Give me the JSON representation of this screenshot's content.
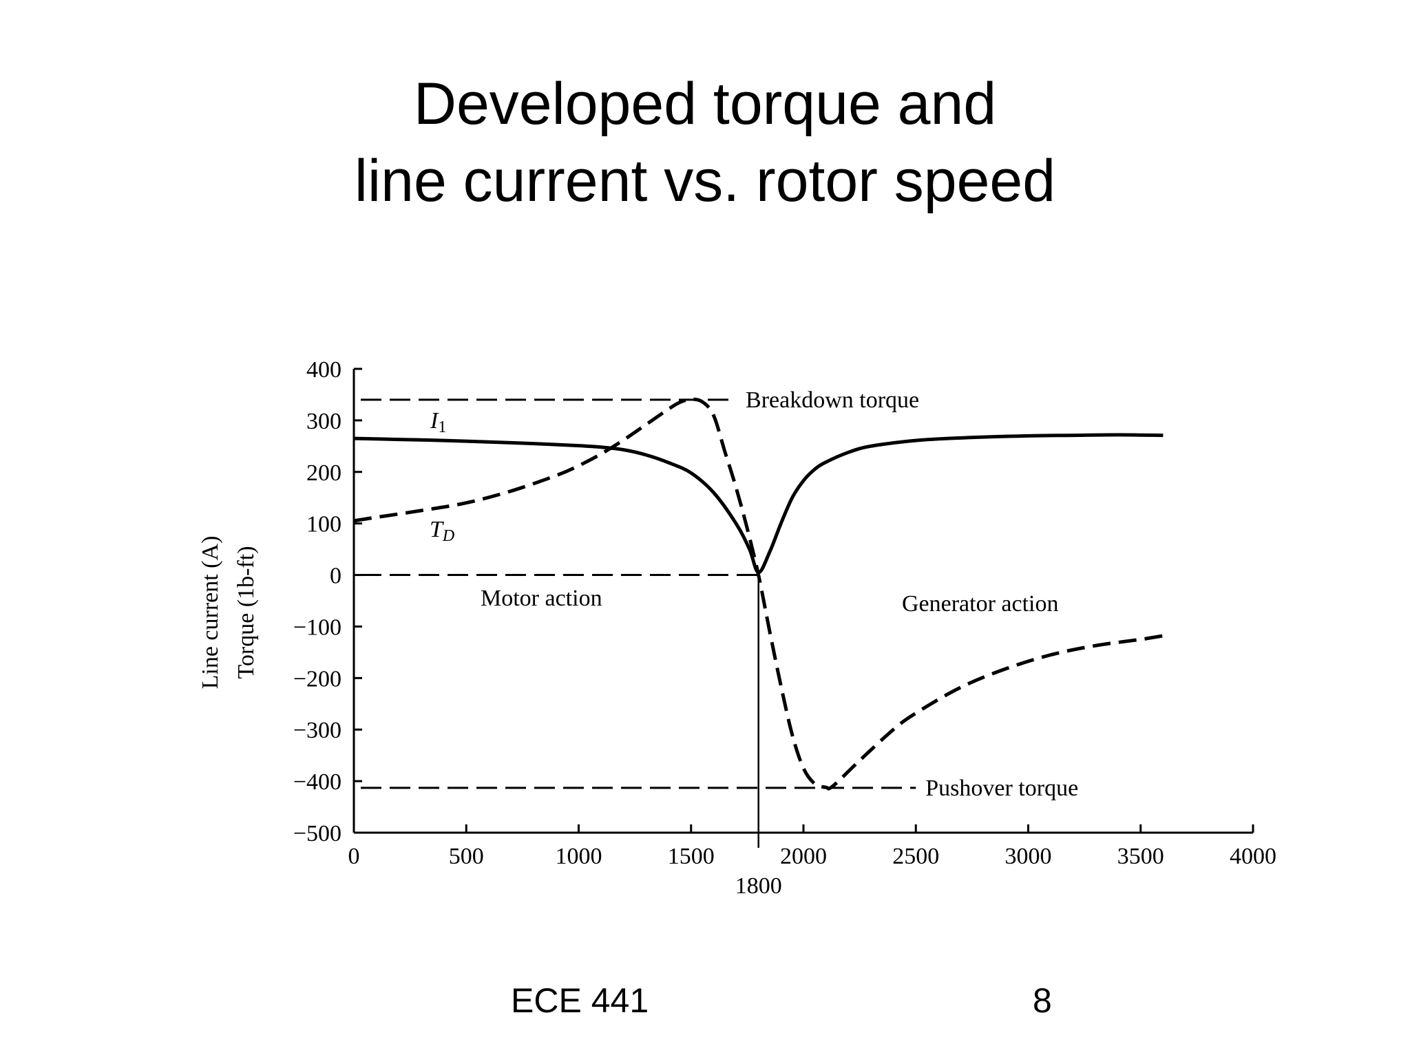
{
  "slide": {
    "title_line1": "Developed torque and",
    "title_line2": "line current vs. rotor speed",
    "footer_course": "ECE 441",
    "footer_page": "8"
  },
  "chart_data": {
    "type": "line",
    "ylabel_line1": "Line current (A)",
    "ylabel_line2": "Torque (1b-ft)",
    "xlim": [
      0,
      4000
    ],
    "ylim": [
      -500,
      400
    ],
    "x_ticks": [
      0,
      500,
      1000,
      1500,
      2000,
      2500,
      3000,
      3500,
      4000
    ],
    "y_ticks": [
      400,
      300,
      200,
      100,
      0,
      -100,
      -200,
      -300,
      -400,
      -500
    ],
    "x_tick_labels": [
      "0",
      "500",
      "1000",
      "1500",
      "2000",
      "2500",
      "3000",
      "3500",
      "4000"
    ],
    "y_tick_labels": [
      "400",
      "300",
      "200",
      "100",
      "0",
      "−100",
      "−200",
      "−300",
      "−400",
      "−500"
    ],
    "sync_speed": {
      "x": 1800,
      "label": "1800"
    },
    "series": [
      {
        "name": "I1",
        "style": "solid",
        "points": [
          [
            0,
            265
          ],
          [
            200,
            263
          ],
          [
            400,
            261
          ],
          [
            600,
            258
          ],
          [
            800,
            255
          ],
          [
            1000,
            251
          ],
          [
            1100,
            248
          ],
          [
            1200,
            243
          ],
          [
            1300,
            233
          ],
          [
            1400,
            218
          ],
          [
            1500,
            198
          ],
          [
            1600,
            160
          ],
          [
            1700,
            100
          ],
          [
            1760,
            50
          ],
          [
            1800,
            5
          ],
          [
            1850,
            45
          ],
          [
            1900,
            100
          ],
          [
            1950,
            150
          ],
          [
            2000,
            183
          ],
          [
            2050,
            205
          ],
          [
            2100,
            219
          ],
          [
            2200,
            238
          ],
          [
            2300,
            250
          ],
          [
            2500,
            261
          ],
          [
            2700,
            266
          ],
          [
            3000,
            270
          ],
          [
            3200,
            271
          ],
          [
            3400,
            272
          ],
          [
            3600,
            271
          ]
        ]
      },
      {
        "name": "TD",
        "style": "dashed",
        "points": [
          [
            0,
            105
          ],
          [
            100,
            112
          ],
          [
            300,
            125
          ],
          [
            500,
            140
          ],
          [
            700,
            163
          ],
          [
            900,
            193
          ],
          [
            1000,
            212
          ],
          [
            1100,
            235
          ],
          [
            1200,
            262
          ],
          [
            1300,
            292
          ],
          [
            1400,
            322
          ],
          [
            1450,
            335
          ],
          [
            1500,
            341
          ],
          [
            1550,
            336
          ],
          [
            1600,
            310
          ],
          [
            1650,
            240
          ],
          [
            1700,
            170
          ],
          [
            1750,
            90
          ],
          [
            1800,
            0
          ],
          [
            1850,
            -110
          ],
          [
            1900,
            -215
          ],
          [
            1950,
            -310
          ],
          [
            2000,
            -375
          ],
          [
            2050,
            -405
          ],
          [
            2100,
            -412
          ],
          [
            2130,
            -410
          ],
          [
            2250,
            -360
          ],
          [
            2400,
            -300
          ],
          [
            2500,
            -268
          ],
          [
            2700,
            -218
          ],
          [
            2900,
            -182
          ],
          [
            3100,
            -155
          ],
          [
            3300,
            -137
          ],
          [
            3500,
            -125
          ],
          [
            3600,
            -118
          ]
        ]
      }
    ],
    "reference_lines": [
      {
        "y": 340,
        "x_start": 0,
        "x_end": 1700,
        "label": "Breakdown torque"
      },
      {
        "y": 0,
        "x_start": 0,
        "x_end": 1800,
        "label": ""
      },
      {
        "y": -413,
        "x_start": 0,
        "x_end": 2500,
        "label": "Pushover torque"
      }
    ],
    "annotations": {
      "i1_label": "I",
      "i1_sub": "1",
      "td_label": "T",
      "td_sub": "D",
      "motor_action": "Motor action",
      "generator_action": "Generator action"
    }
  }
}
